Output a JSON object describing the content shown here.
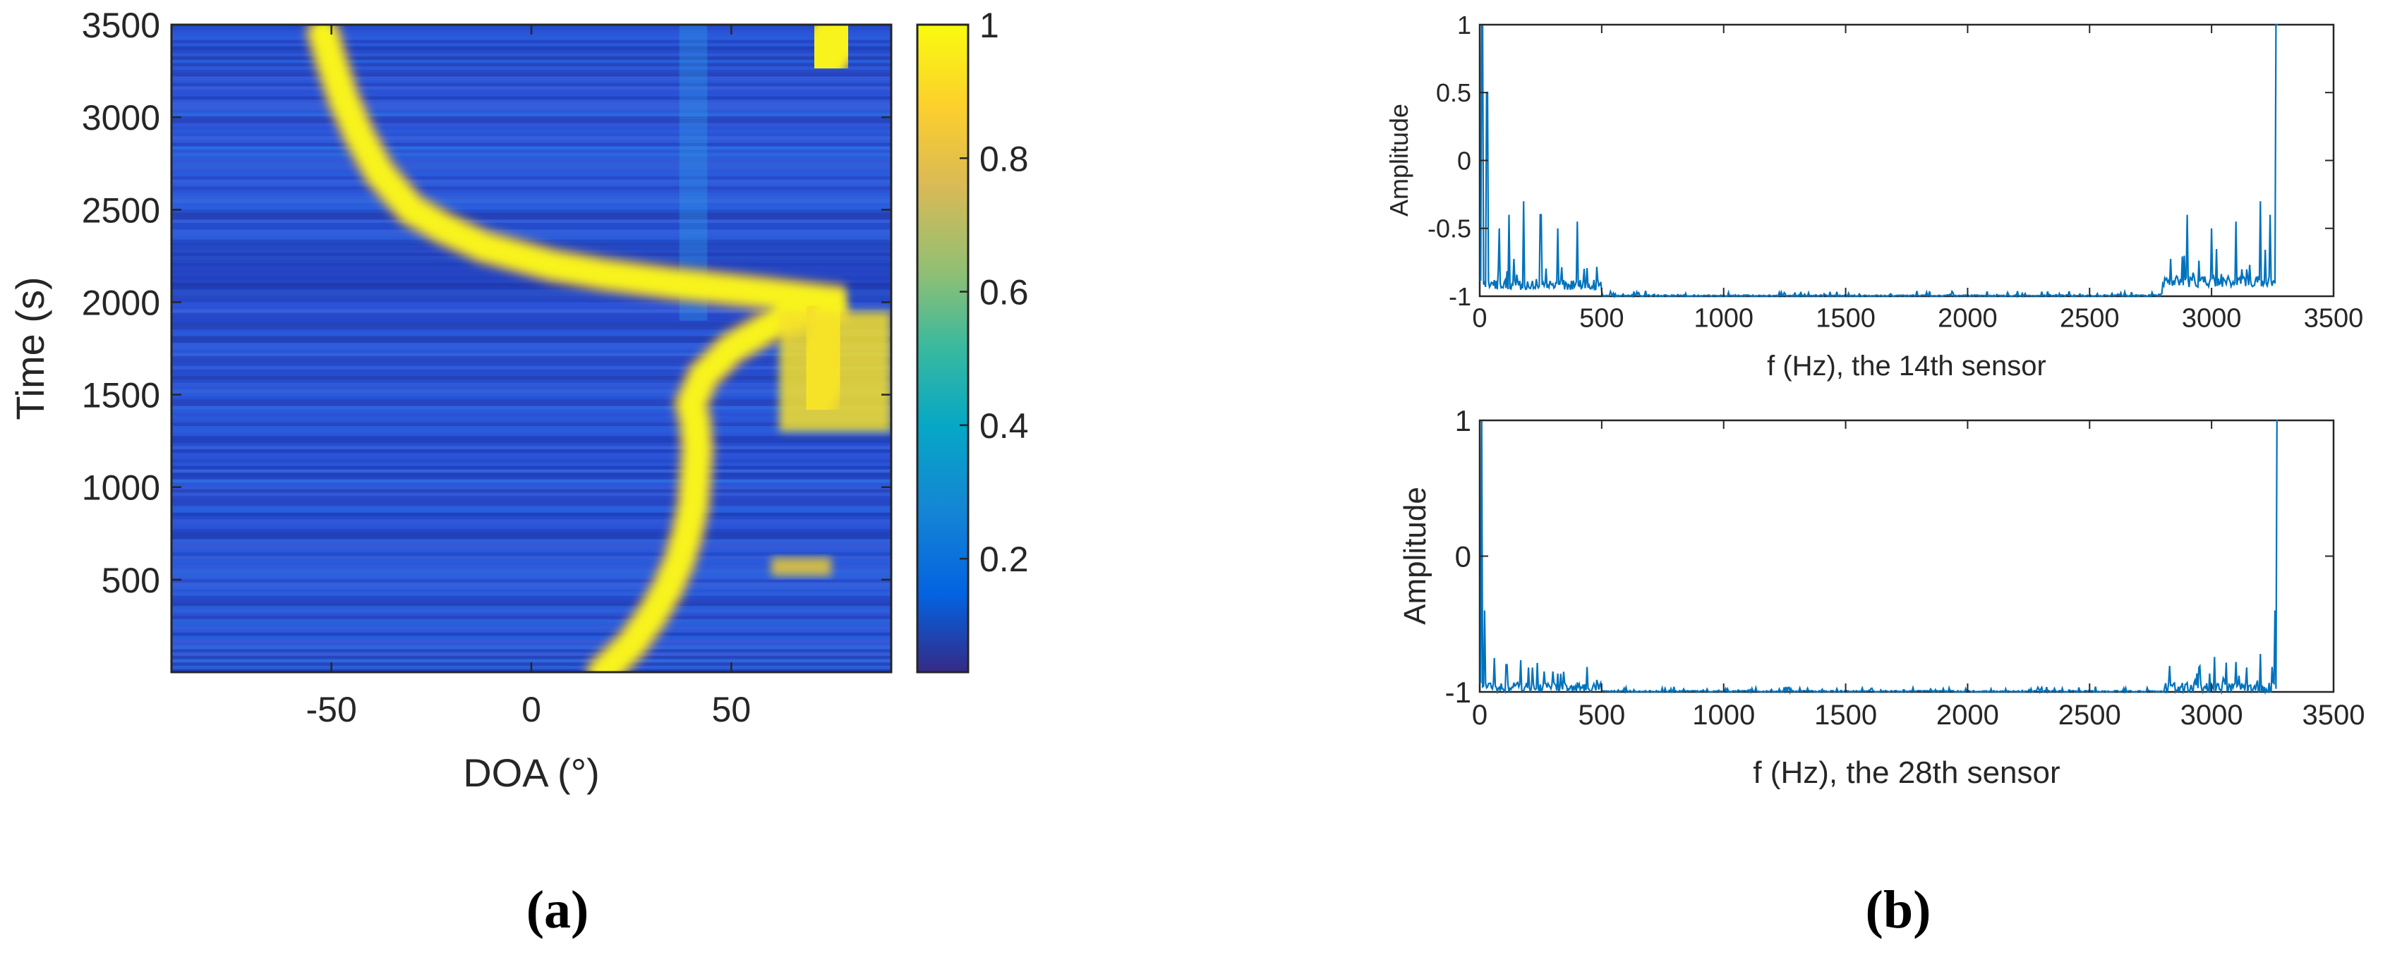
{
  "panel_labels": {
    "a": "a",
    "b": "b"
  },
  "chart_data": [
    {
      "id": "a",
      "type": "heatmap",
      "title": "",
      "xlabel": "DOA (°)",
      "ylabel": "Time (s)",
      "xlim": [
        -90,
        90
      ],
      "ylim": [
        0,
        3500
      ],
      "xticks": [
        -50,
        0,
        50
      ],
      "xtick_labels": [
        "-50",
        "0",
        "50"
      ],
      "yticks": [
        500,
        1000,
        1500,
        2000,
        2500,
        3000,
        3500
      ],
      "ytick_labels": [
        "500",
        "1000",
        "1500",
        "2000",
        "2500",
        "3000",
        "3500"
      ],
      "colormap": "parula",
      "colorbar": {
        "limits": [
          0,
          1
        ],
        "ticks": [
          0.2,
          0.4,
          0.6,
          0.8,
          1
        ],
        "tick_labels": [
          "0.2",
          "0.4",
          "0.6",
          "0.8",
          "1"
        ]
      },
      "colors": {
        "background": "#2d4fd6",
        "high": "#f8f31c"
      },
      "tracks": [
        {
          "label": "",
          "time": [
            0,
            150,
            300,
            450,
            600,
            750,
            900,
            1050,
            1200,
            1350,
            1450,
            1600,
            1750,
            1900,
            2000,
            2050,
            2100,
            2150,
            2200,
            2300,
            2400,
            2500,
            2700,
            2900,
            3100,
            3300,
            3450
          ],
          "doa": [
            18,
            25,
            30,
            34,
            37,
            39,
            40.5,
            41,
            41.5,
            41,
            40,
            43,
            50,
            62,
            78,
            58,
            36,
            18,
            5,
            -12,
            -22,
            -30,
            -38,
            -43,
            -47,
            -50,
            -52
          ]
        },
        {
          "label": "",
          "time": [
            1500,
            1600,
            1700,
            1800,
            1900
          ],
          "doa": [
            70,
            72,
            74,
            75,
            76
          ]
        },
        {
          "label": "",
          "time": [
            3300,
            3400,
            3480
          ],
          "doa": [
            72,
            75,
            78
          ]
        }
      ]
    },
    {
      "id": "b1",
      "type": "line",
      "title": "",
      "xlabel": "f (Hz), the 14th sensor",
      "ylabel": "Amplitude",
      "xlim": [
        0,
        3500
      ],
      "ylim": [
        -1,
        1
      ],
      "xticks": [
        0,
        500,
        1000,
        1500,
        2000,
        2500,
        3000,
        3500
      ],
      "xtick_labels": [
        "0",
        "500",
        "1000",
        "1500",
        "2000",
        "2500",
        "3000",
        "3500"
      ],
      "yticks": [
        -1,
        -0.5,
        0,
        0.5,
        1
      ],
      "ytick_labels": [
        "-1",
        "-0.5",
        "0",
        "0.5",
        "1"
      ],
      "line_color": "#0072bd",
      "peaks": [
        {
          "x": 10,
          "y": 1
        },
        {
          "x": 30,
          "y": 0.5
        },
        {
          "x": 80,
          "y": -0.5
        },
        {
          "x": 120,
          "y": -0.4
        },
        {
          "x": 180,
          "y": -0.3
        },
        {
          "x": 250,
          "y": -0.4
        },
        {
          "x": 320,
          "y": -0.5
        },
        {
          "x": 400,
          "y": -0.45
        },
        {
          "x": 2900,
          "y": -0.4
        },
        {
          "x": 3000,
          "y": -0.5
        },
        {
          "x": 3100,
          "y": -0.45
        },
        {
          "x": 3200,
          "y": -0.3
        },
        {
          "x": 3240,
          "y": -0.4
        },
        {
          "x": 3265,
          "y": 1
        }
      ],
      "floor": {
        "low_band": [
          0,
          500,
          -0.88
        ],
        "mid": [
          500,
          2800,
          -0.99
        ],
        "high_band": [
          2800,
          3270,
          -0.85
        ]
      }
    },
    {
      "id": "b2",
      "type": "line",
      "title": "",
      "xlabel": "f (Hz), the 28th sensor",
      "ylabel": "Amplitude",
      "xlim": [
        0,
        3500
      ],
      "ylim": [
        -1,
        1
      ],
      "xticks": [
        0,
        500,
        1000,
        1500,
        2000,
        2500,
        3000,
        3500
      ],
      "xtick_labels": [
        "0",
        "500",
        "1000",
        "1500",
        "2000",
        "2500",
        "3000",
        "3500"
      ],
      "yticks": [
        -1,
        0,
        1
      ],
      "ytick_labels": [
        "-1",
        "0",
        "1"
      ],
      "line_color": "#0072bd",
      "peaks": [
        {
          "x": 8,
          "y": 1
        },
        {
          "x": 20,
          "y": -0.4
        },
        {
          "x": 60,
          "y": -0.75
        },
        {
          "x": 110,
          "y": -0.8
        },
        {
          "x": 200,
          "y": -0.82
        },
        {
          "x": 300,
          "y": -0.85
        },
        {
          "x": 2950,
          "y": -0.82
        },
        {
          "x": 3100,
          "y": -0.78
        },
        {
          "x": 3200,
          "y": -0.72
        },
        {
          "x": 3260,
          "y": -0.4
        },
        {
          "x": 3268,
          "y": 1
        }
      ],
      "floor": {
        "low_band": [
          0,
          500,
          -0.93
        ],
        "mid": [
          500,
          2800,
          -0.99
        ],
        "high_band": [
          2800,
          3270,
          -0.93
        ]
      }
    }
  ]
}
